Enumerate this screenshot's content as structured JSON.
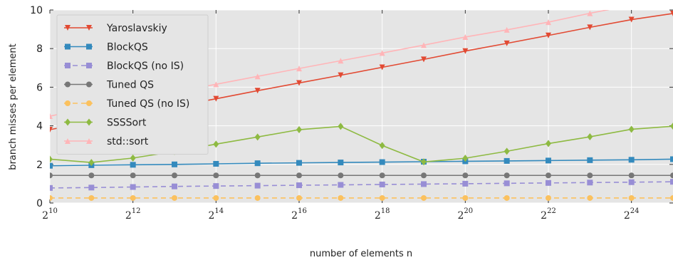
{
  "chart_data": {
    "type": "line",
    "xlabel": "number of elements n",
    "ylabel": "branch misses per element",
    "x_scale": "log2",
    "x_exponents": [
      10,
      11,
      12,
      13,
      14,
      15,
      16,
      17,
      18,
      19,
      20,
      21,
      22,
      23,
      24,
      25
    ],
    "x_tick_base": "2",
    "x_tick_exponents": [
      "10",
      "12",
      "14",
      "16",
      "18",
      "20",
      "22",
      "24"
    ],
    "xlim_exponents": [
      10,
      25
    ],
    "ylim": [
      0,
      10
    ],
    "y_ticks": [
      "0",
      "2",
      "4",
      "6",
      "8",
      "10"
    ],
    "grid": true,
    "background": "#e5e5e5",
    "legend_position": "top-left",
    "series": [
      {
        "name": "Yaroslavskiy",
        "color": "#e24a33",
        "marker": "triangle-down",
        "dashed": false,
        "values": [
          3.8,
          4.2,
          4.6,
          5.0,
          5.4,
          5.82,
          6.22,
          6.62,
          7.03,
          7.44,
          7.87,
          8.27,
          8.68,
          9.1,
          9.5,
          9.82
        ]
      },
      {
        "name": "BlockQS",
        "color": "#348abd",
        "marker": "square",
        "dashed": false,
        "values": [
          1.93,
          1.96,
          1.98,
          2.0,
          2.03,
          2.06,
          2.08,
          2.1,
          2.12,
          2.14,
          2.16,
          2.18,
          2.2,
          2.22,
          2.24,
          2.27
        ]
      },
      {
        "name": "BlockQS (no IS)",
        "color": "#988ed5",
        "marker": "square",
        "dashed": true,
        "values": [
          0.78,
          0.8,
          0.83,
          0.86,
          0.88,
          0.9,
          0.92,
          0.94,
          0.96,
          0.98,
          1.0,
          1.02,
          1.04,
          1.06,
          1.08,
          1.1
        ]
      },
      {
        "name": "Tuned QS",
        "color": "#777777",
        "marker": "circle",
        "dashed": false,
        "values": [
          1.43,
          1.43,
          1.43,
          1.43,
          1.43,
          1.43,
          1.43,
          1.43,
          1.43,
          1.43,
          1.43,
          1.43,
          1.43,
          1.43,
          1.43,
          1.43
        ]
      },
      {
        "name": "Tuned QS (no IS)",
        "color": "#fbc15e",
        "marker": "circle",
        "dashed": true,
        "values": [
          0.26,
          0.26,
          0.26,
          0.26,
          0.26,
          0.26,
          0.26,
          0.26,
          0.26,
          0.26,
          0.26,
          0.26,
          0.26,
          0.26,
          0.26,
          0.26
        ]
      },
      {
        "name": "SSSSort",
        "color": "#8eba42",
        "marker": "diamond",
        "dashed": false,
        "values": [
          2.27,
          2.1,
          2.33,
          2.67,
          3.05,
          3.42,
          3.8,
          3.97,
          2.98,
          2.13,
          2.32,
          2.68,
          3.08,
          3.43,
          3.82,
          3.98
        ]
      },
      {
        "name": "std::sort",
        "color": "#ffb5b8",
        "marker": "triangle-up",
        "dashed": false,
        "values": [
          4.5,
          4.95,
          5.35,
          5.75,
          6.15,
          6.56,
          6.97,
          7.37,
          7.77,
          8.18,
          8.6,
          8.97,
          9.37,
          9.83,
          10.25,
          10.7
        ]
      }
    ]
  }
}
